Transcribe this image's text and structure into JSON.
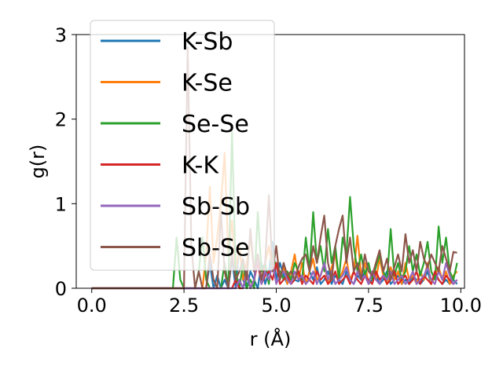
{
  "chart_data": {
    "type": "line",
    "xlabel": "r (Å)",
    "ylabel": "g(r)",
    "xlim": [
      -0.42,
      10.1
    ],
    "ylim": [
      0,
      3.0
    ],
    "xticks": [
      "0.0",
      "2.5",
      "5.0",
      "7.5",
      "10.0"
    ],
    "yticks": [
      "0",
      "1",
      "2",
      "3"
    ],
    "grid": false,
    "legend_position": "top-left",
    "x": [
      0.0,
      0.1,
      0.2,
      0.3,
      0.4,
      0.5,
      0.6,
      0.7,
      0.8,
      0.9,
      1.0,
      1.1,
      1.2,
      1.3,
      1.4,
      1.5,
      1.6,
      1.7,
      1.8,
      1.9,
      2.0,
      2.1,
      2.2,
      2.3,
      2.4,
      2.5,
      2.6,
      2.7,
      2.8,
      2.9,
      3.0,
      3.1,
      3.2,
      3.3,
      3.4,
      3.5,
      3.6,
      3.7,
      3.8,
      3.9,
      4.0,
      4.1,
      4.2,
      4.3,
      4.4,
      4.5,
      4.6,
      4.7,
      4.8,
      4.9,
      5.0,
      5.1,
      5.2,
      5.3,
      5.4,
      5.5,
      5.6,
      5.7,
      5.8,
      5.9,
      6.0,
      6.1,
      6.2,
      6.3,
      6.4,
      6.5,
      6.6,
      6.7,
      6.8,
      6.9,
      7.0,
      7.1,
      7.2,
      7.3,
      7.4,
      7.5,
      7.6,
      7.7,
      7.8,
      7.9,
      8.0,
      8.1,
      8.2,
      8.3,
      8.4,
      8.5,
      8.6,
      8.7,
      8.8,
      8.9,
      9.0,
      9.1,
      9.2,
      9.3,
      9.4,
      9.5,
      9.6,
      9.7,
      9.8,
      9.9
    ],
    "series": [
      {
        "name": "K-Sb",
        "color": "#1f77b4",
        "values": [
          0,
          0,
          0,
          0,
          0,
          0,
          0,
          0,
          0,
          0,
          0,
          0,
          0,
          0,
          0,
          0,
          0,
          0,
          0,
          0,
          0,
          0,
          0,
          0,
          0,
          0,
          0,
          0,
          0,
          0,
          0,
          0,
          0.3,
          0,
          0.15,
          0,
          0.1,
          0,
          0.35,
          0,
          0.5,
          0.1,
          0,
          0.2,
          0.1,
          0,
          0.3,
          0.05,
          0.2,
          0.55,
          0.1,
          0.3,
          0.15,
          0.05,
          0.2,
          0.1,
          0.08,
          0.15,
          0.05,
          0.2,
          0.1,
          0.25,
          0.05,
          0.1,
          0.2,
          0.05,
          0.15,
          0.1,
          0.05,
          0.2,
          0.1,
          0.05,
          0.15,
          0.1,
          0.2,
          0.05,
          0.1,
          0.15,
          0.05,
          0.1,
          0.2,
          0.05,
          0.1,
          0.15,
          0.05,
          0.1,
          0.05,
          0.15,
          0.1,
          0.05,
          0.1,
          0.2,
          0.05,
          0.15,
          0.1,
          0.05,
          0.1,
          0.05,
          0.1,
          0.05
        ]
      },
      {
        "name": "K-Se",
        "color": "#ff7f0e",
        "values": [
          0,
          0,
          0,
          0,
          0,
          0,
          0,
          0,
          0,
          0,
          0,
          0,
          0,
          0,
          0,
          0,
          0,
          0,
          0,
          0,
          0,
          0,
          0,
          0,
          0,
          0,
          0,
          0,
          0,
          0,
          0,
          0.4,
          1.2,
          0.3,
          0.6,
          1.0,
          1.6,
          0.4,
          0.8,
          0.2,
          0.5,
          0.1,
          0.3,
          0.6,
          0.2,
          0.4,
          0.1,
          0.3,
          0.5,
          0.2,
          0.3,
          0.1,
          0.25,
          0.05,
          0.2,
          0.4,
          0.1,
          0.3,
          0.05,
          0.2,
          0.35,
          0.1,
          0.15,
          0.3,
          0.05,
          0.25,
          0.4,
          0.1,
          0.2,
          0.35,
          0.1,
          0.2,
          0.62,
          0.15,
          0.3,
          0.05,
          0.2,
          0.1,
          0.35,
          0.15,
          0.05,
          0.25,
          0.1,
          0.2,
          0.05,
          0.3,
          0.1,
          0.15,
          0.05,
          0.2,
          0.1,
          0.3,
          0.05,
          0.15,
          0.25,
          0.1,
          0.2,
          0.05,
          0.15,
          0.2
        ]
      },
      {
        "name": "Se-Se",
        "color": "#2ca02c",
        "values": [
          0,
          0,
          0,
          0,
          0,
          0,
          0,
          0,
          0,
          0,
          0,
          0,
          0,
          0,
          0,
          0,
          0,
          0,
          0,
          0,
          0,
          0,
          0,
          0.6,
          0.1,
          0,
          0,
          0,
          0,
          0.2,
          0.6,
          0.1,
          0,
          0,
          0,
          0,
          0.3,
          0,
          1.85,
          0.2,
          0,
          0.3,
          0,
          0.1,
          0,
          0.9,
          0.2,
          0.3,
          0.05,
          0.4,
          0.25,
          0.2,
          0.1,
          0.2,
          0.1,
          0.3,
          0.2,
          0.1,
          0.6,
          0.2,
          0.9,
          0.3,
          0.5,
          0.2,
          0.7,
          0.3,
          0.5,
          0.1,
          0.6,
          0.4,
          1.08,
          0.5,
          0.2,
          0.4,
          0.15,
          0.3,
          0.1,
          0.25,
          0.4,
          0.2,
          0.1,
          0.7,
          0.15,
          0.3,
          0.1,
          0.2,
          0.5,
          0.2,
          0.4,
          0.15,
          0.3,
          0.55,
          0.2,
          0.1,
          0.73,
          0.3,
          0.6,
          0.2,
          0.1,
          0.3
        ]
      },
      {
        "name": "K-K",
        "color": "#d62728",
        "values": [
          0,
          0,
          0,
          0,
          0,
          0,
          0,
          0,
          0,
          0,
          0,
          0,
          0,
          0,
          0,
          0,
          0,
          0,
          0,
          0,
          0,
          0,
          0,
          0,
          0,
          0,
          0,
          0,
          0,
          0,
          0,
          0,
          0,
          0,
          0,
          0,
          0,
          0,
          0,
          0.1,
          0,
          0,
          0.2,
          0,
          0.1,
          0.3,
          0.05,
          0.15,
          0.2,
          0.1,
          0.3,
          0.05,
          0.1,
          0.15,
          0.05,
          0.1,
          0.2,
          0.05,
          0.15,
          0.1,
          0.05,
          0.2,
          0.1,
          0.15,
          0.05,
          0.1,
          0.2,
          0.05,
          0.1,
          0.15,
          0.05,
          0.2,
          0.1,
          0.05,
          0.15,
          0.1,
          0.05,
          0.2,
          0.1,
          0.15,
          0.05,
          0.1,
          0.2,
          0.05,
          0.1,
          0.15,
          0.05,
          0.1,
          0.2,
          0.05,
          0.15,
          0.1,
          0.05,
          0.2,
          0.1,
          0.05,
          0.15,
          0.1,
          0.05,
          0.1
        ]
      },
      {
        "name": "Sb-Sb",
        "color": "#9467bd",
        "values": [
          0,
          0,
          0,
          0,
          0,
          0,
          0,
          0,
          0,
          0,
          0,
          0,
          0,
          0,
          0,
          0,
          0,
          0,
          0,
          0,
          0,
          0,
          0,
          0,
          0,
          0,
          0,
          0,
          0,
          0,
          0,
          0,
          0,
          0,
          0,
          0,
          0,
          0,
          0,
          0,
          0.1,
          0,
          0.2,
          0,
          0.1,
          0.4,
          0.05,
          0.2,
          0.1,
          0.3,
          0.05,
          0.15,
          0.2,
          0.1,
          0.05,
          0.2,
          0.1,
          0.15,
          0.05,
          0.1,
          0.2,
          0.05,
          0.15,
          0.3,
          0.1,
          0.2,
          0.05,
          0.1,
          0.15,
          0.25,
          0.1,
          0.05,
          0.2,
          0.1,
          0.15,
          0.05,
          0.2,
          0.1,
          0.05,
          0.15,
          0.1,
          0.2,
          0.05,
          0.1,
          0.15,
          0.05,
          0.1,
          0.2,
          0.05,
          0.1,
          0.15,
          0.25,
          0.1,
          0.05,
          0.2,
          0.1,
          0.3,
          0.15,
          0.05,
          0.1
        ]
      },
      {
        "name": "Sb-Se",
        "color": "#8c564b",
        "values": [
          0,
          0,
          0,
          0,
          0,
          0,
          0,
          0,
          0,
          0,
          0,
          0,
          0,
          0,
          0,
          0,
          0,
          0,
          0,
          0,
          0,
          0,
          0,
          0,
          0,
          0,
          2.85,
          0.5,
          0,
          0.2,
          0,
          0,
          0.4,
          0.1,
          0,
          0.9,
          0.2,
          0,
          0.4,
          0.1,
          0.2,
          0.35,
          0.1,
          0.7,
          0.2,
          0.4,
          0.1,
          0.3,
          1.1,
          0.2,
          0.5,
          0.1,
          0.3,
          0.15,
          0.2,
          0.1,
          0.25,
          0.35,
          0.4,
          0.2,
          0.5,
          0.3,
          0.6,
          0.86,
          0.3,
          0.1,
          0.5,
          0.7,
          0.86,
          0.3,
          0.6,
          0.2,
          0.3,
          0.1,
          0.4,
          0.2,
          0.15,
          0.3,
          0.45,
          0.2,
          0.35,
          0.1,
          0.25,
          0.4,
          0.2,
          0.64,
          0.3,
          0.45,
          0.2,
          0.55,
          0.35,
          0.25,
          0.4,
          0.3,
          0.2,
          0.5,
          0.35,
          0.2,
          0.43,
          0.42
        ]
      }
    ]
  }
}
